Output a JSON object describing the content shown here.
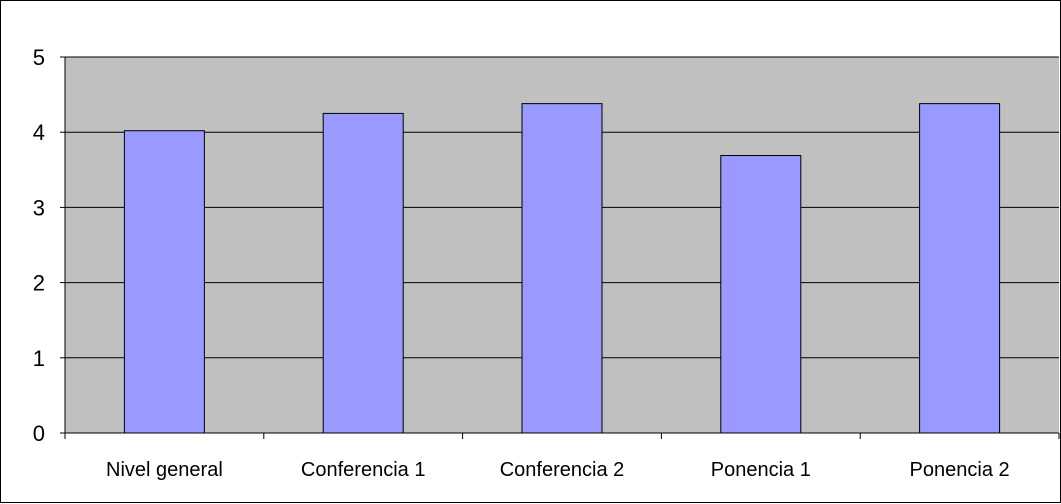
{
  "chart_data": {
    "type": "bar",
    "title": "",
    "xlabel": "",
    "ylabel": "",
    "categories": [
      "Nivel general",
      "Conferencia 1",
      "Conferencia 2",
      "Ponencia 1",
      "Ponencia 2"
    ],
    "values": [
      4.02,
      4.25,
      4.38,
      3.69,
      4.38
    ],
    "ylim": [
      0,
      5
    ],
    "yticks": [
      "0",
      "1",
      "2",
      "3",
      "4",
      "5"
    ],
    "grid": true,
    "legend": "none",
    "colors": {
      "plot_background": "#c0c0c0",
      "bar_fill": "#9999ff",
      "bar_stroke": "#000000",
      "gridline": "#000000"
    }
  }
}
